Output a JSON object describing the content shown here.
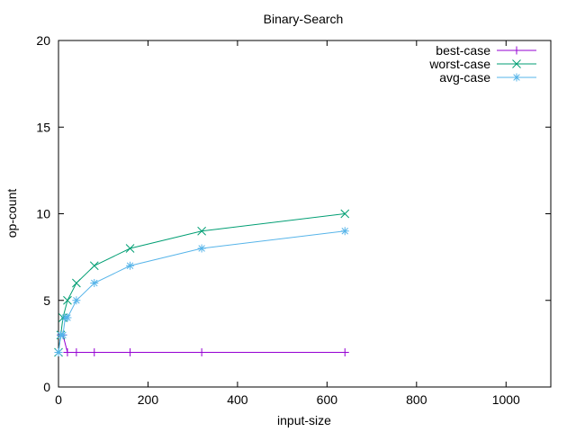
{
  "chart_data": {
    "type": "line",
    "title": "Binary-Search",
    "xlabel": "input-size",
    "ylabel": "op-count",
    "xlim": [
      0,
      1100
    ],
    "ylim": [
      0,
      20
    ],
    "x_ticks": [
      0,
      200,
      400,
      600,
      800,
      1000
    ],
    "y_ticks": [
      0,
      5,
      10,
      15,
      20
    ],
    "grid": false,
    "legend_position": "top-right",
    "series": [
      {
        "name": "best-case",
        "color": "#9400d3",
        "marker": "plus",
        "points": [
          [
            5,
            3
          ],
          [
            10,
            3
          ],
          [
            20,
            2
          ],
          [
            40,
            2
          ],
          [
            80,
            2
          ],
          [
            160,
            2
          ],
          [
            320,
            2
          ],
          [
            640,
            2
          ]
        ]
      },
      {
        "name": "worst-case",
        "color": "#009e73",
        "marker": "cross",
        "points": [
          [
            0,
            2
          ],
          [
            5,
            3
          ],
          [
            10,
            4
          ],
          [
            20,
            5
          ],
          [
            40,
            6
          ],
          [
            80,
            7
          ],
          [
            160,
            8
          ],
          [
            320,
            9
          ],
          [
            640,
            10
          ]
        ]
      },
      {
        "name": "avg-case",
        "color": "#56b4e9",
        "marker": "star",
        "points": [
          [
            0,
            2
          ],
          [
            5,
            3
          ],
          [
            10,
            3
          ],
          [
            15,
            4
          ],
          [
            20,
            4
          ],
          [
            40,
            5
          ],
          [
            80,
            6
          ],
          [
            160,
            7
          ],
          [
            320,
            8
          ],
          [
            640,
            9
          ]
        ]
      }
    ]
  }
}
